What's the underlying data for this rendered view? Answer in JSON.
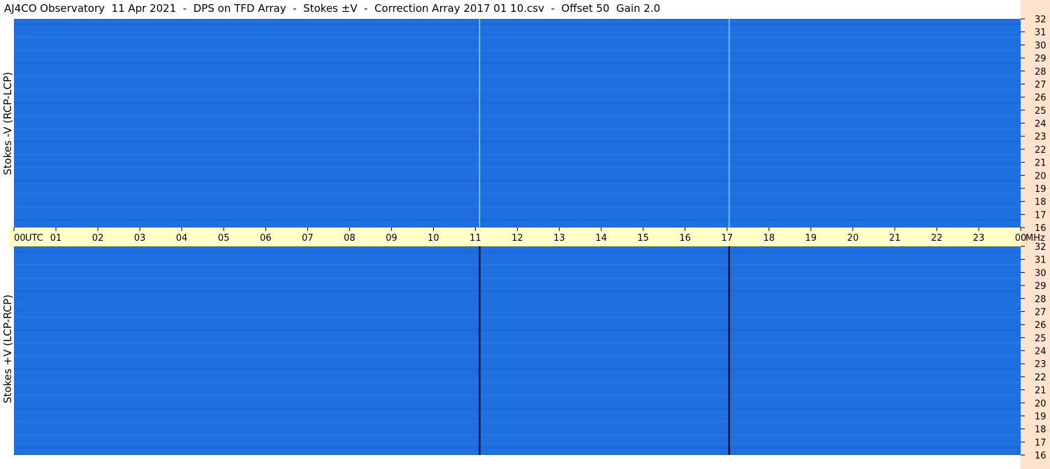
{
  "title": "AJ4CO Observatory  11 Apr 2021  -  DPS on TFD Array  -  Stokes ±V  -  Correction Array 2017 01 10.csv  -  Offset 50  Gain 2.0",
  "chart_data": {
    "type": "heatmap",
    "panels": [
      {
        "ylabel": "Stokes -V (RCP-LCP)",
        "ylim": [
          16,
          32
        ]
      },
      {
        "ylabel": "Stokes +V (LCP-RCP)",
        "ylim": [
          16,
          32
        ]
      }
    ],
    "x_tick_labels": [
      "00",
      "01",
      "02",
      "03",
      "04",
      "05",
      "06",
      "07",
      "08",
      "09",
      "10",
      "11",
      "12",
      "13",
      "14",
      "15",
      "16",
      "17",
      "18",
      "19",
      "20",
      "21",
      "22",
      "23",
      "00"
    ],
    "x_unit_label": "UTC",
    "y_unit_label": "MHz",
    "y_tick_labels": [
      "32",
      "31",
      "30",
      "29",
      "28",
      "27",
      "26",
      "25",
      "24",
      "23",
      "22",
      "21",
      "20",
      "19",
      "18",
      "17",
      "16"
    ],
    "xlim_hours": [
      0,
      24
    ],
    "colors": {
      "background": "#1f6fe0",
      "strip": "#ffffc8",
      "side": "#ffe3cc"
    }
  }
}
